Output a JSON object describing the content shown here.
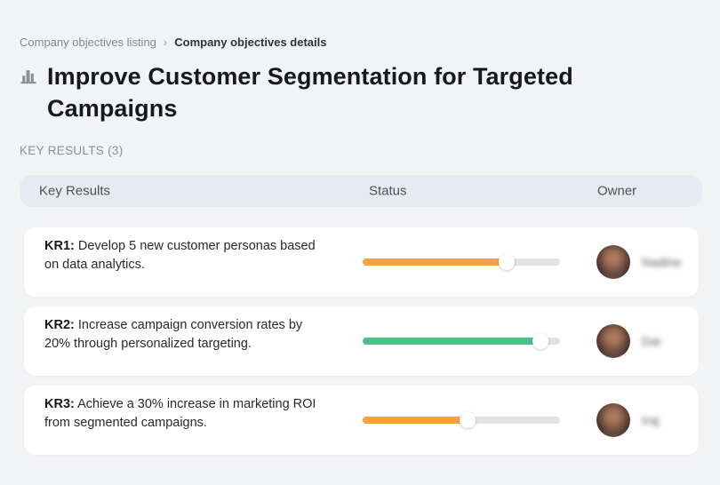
{
  "breadcrumb": {
    "items": [
      {
        "label": "Company objectives listing"
      },
      {
        "label": "Company objectives details"
      }
    ],
    "separator": "›",
    "separator_icon": "chevron-right-icon"
  },
  "header": {
    "title": "Improve Customer Segmentation for Targeted Campaigns",
    "icon": "city-buildings-icon"
  },
  "section": {
    "label": "KEY RESULTS (3)"
  },
  "table": {
    "columns": {
      "key_results": "Key Results",
      "status": "Status",
      "owner": "Owner"
    },
    "rows": [
      {
        "kr_label": "KR1:",
        "kr_text": "Develop 5 new customer personas based on data analytics.",
        "progress_percent": 73,
        "progress_color": "#F9A13C",
        "owner_name": "Nadine",
        "owner_avatar": "blurred-photo-avatar"
      },
      {
        "kr_label": "KR2:",
        "kr_text": "Increase campaign conversion rates by 20% through personalized targeting.",
        "progress_percent": 90,
        "progress_color": "#4DC08C",
        "owner_name": "Dai",
        "owner_avatar": "blurred-photo-avatar"
      },
      {
        "kr_label": "KR3:",
        "kr_text": "Achieve a 30% increase in marketing ROI from segmented campaigns.",
        "progress_percent": 53,
        "progress_color": "#F9A13C",
        "owner_name": "Iraj",
        "owner_avatar": "blurred-photo-avatar"
      }
    ]
  },
  "colors": {
    "page_background": "#f2f3f5",
    "header_band": "#e7eaf0",
    "card_background": "#ffffff",
    "progress_orange": "#F9A13C",
    "progress_green": "#4DC08C",
    "progress_track": "#e2e2e5"
  }
}
